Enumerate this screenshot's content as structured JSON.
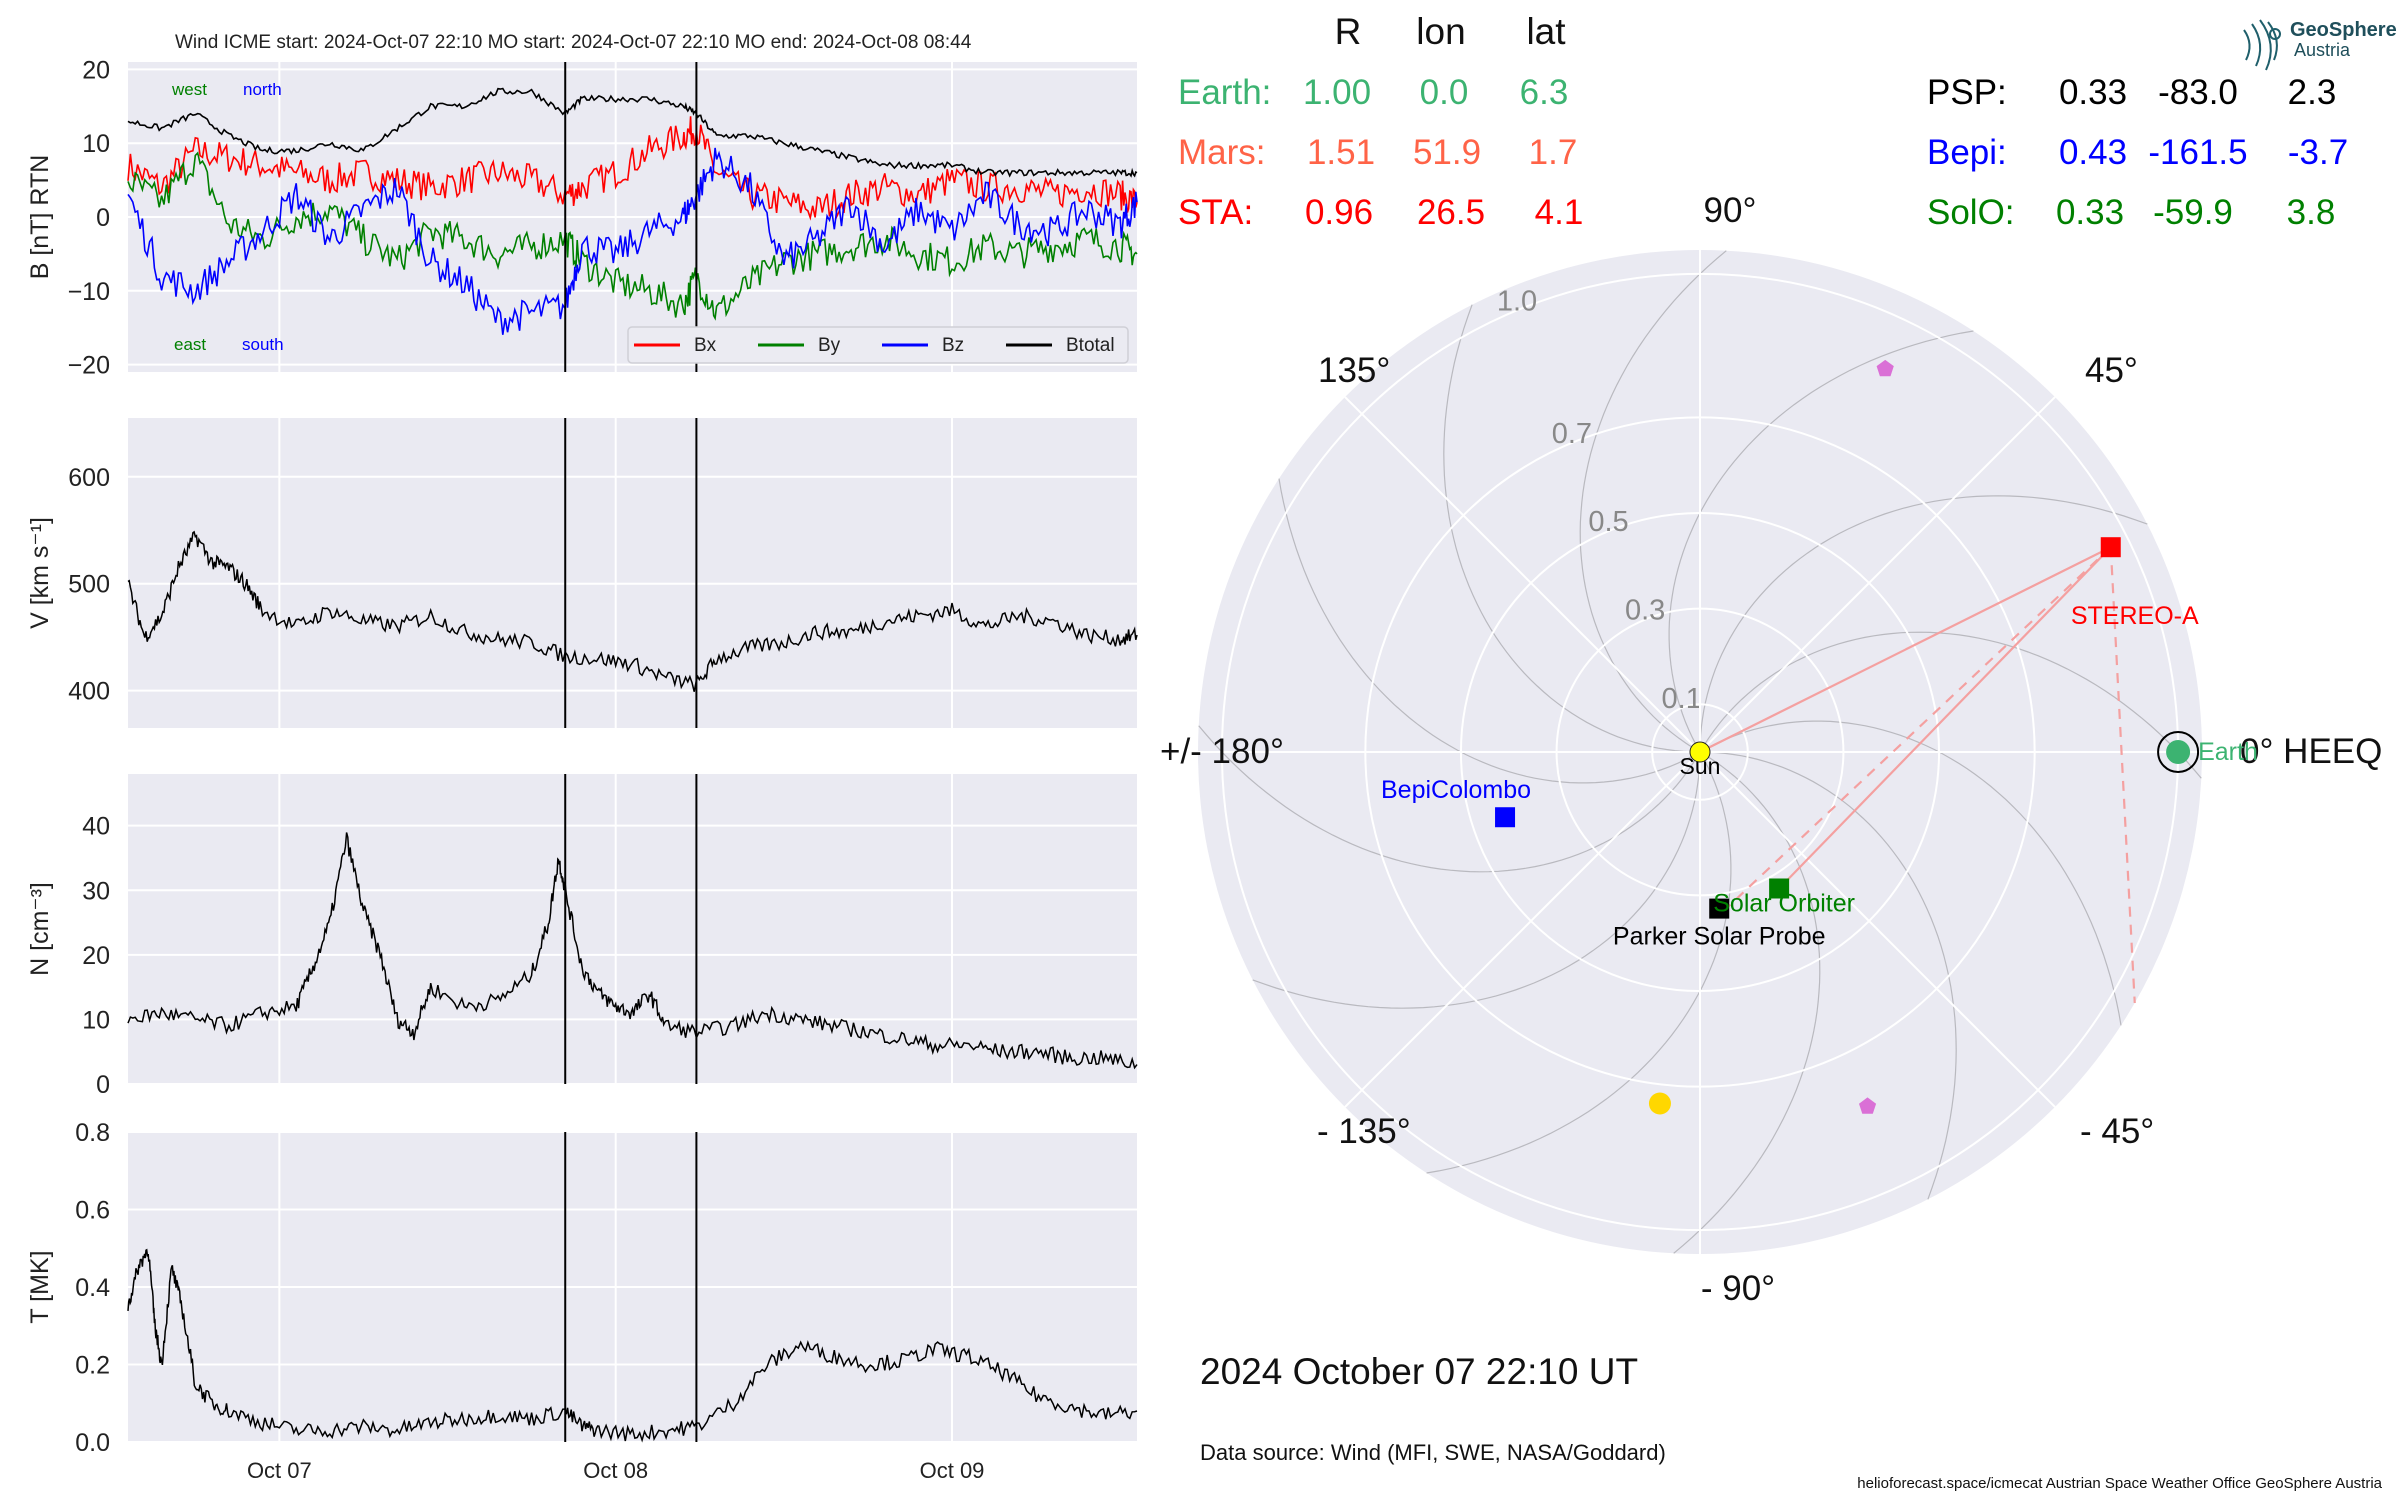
{
  "figure": {
    "header": "Wind    ICME start: 2024-Oct-07 22:10   MO start: 2024-Oct-07 22:10   MO end: 2024-Oct-08 08:44",
    "date_label": "2024 October 07  22:10 UT",
    "source": "Data source: Wind (MFI, SWE, NASA/Goddard)",
    "footer": "helioforecast.space/icmecat   Austrian Space Weather Office   GeoSphere Austria",
    "logo": {
      "line1": "GeoSphere",
      "line2": "Austria"
    }
  },
  "colors": {
    "panel_bg": "#eaeaf2",
    "bx": "#ff0000",
    "by": "#008000",
    "bz": "#0000ff",
    "btotal": "#000000",
    "earth": "#3cb371",
    "mars": "#ff6347",
    "sta": "#ff0000",
    "psp": "#000000",
    "bepi": "#0000ff",
    "solo": "#008000",
    "sun": "#ffff00",
    "comet": "#da70d6",
    "gold": "#ffd700"
  },
  "chart_data": [
    {
      "type": "line",
      "panel": "magnetic-field",
      "ylabel": "B [nT] RTN",
      "ylim": [
        -21,
        21
      ],
      "yticks": [
        "20",
        "10",
        "0",
        "−10",
        "−20"
      ],
      "ytick_values": [
        20,
        10,
        0,
        -10,
        -20
      ],
      "xlim_days": [
        0,
        3
      ],
      "xticks": [
        "Oct 07",
        "Oct 08",
        "Oct 09"
      ],
      "annotations": {
        "west": "west",
        "north": "north",
        "east": "east",
        "south": "south"
      },
      "legend": [
        "Bx",
        "By",
        "Bz",
        "Btotal"
      ],
      "legend_position": "lower-right",
      "event_lines_days": [
        1.3,
        1.69
      ],
      "series": [
        {
          "name": "Bx",
          "color": "#ff0000",
          "x": [
            0.0,
            0.1,
            0.2,
            0.3,
            0.4,
            0.5,
            0.6,
            0.7,
            0.8,
            0.9,
            1.0,
            1.1,
            1.2,
            1.3,
            1.35,
            1.45,
            1.55,
            1.65,
            1.69,
            1.75,
            1.85,
            1.95,
            2.05,
            2.15,
            2.25,
            2.35,
            2.45,
            2.55,
            2.65,
            2.75,
            2.85,
            2.95,
            3.0
          ],
          "y": [
            7,
            4,
            9,
            8,
            7,
            6,
            5,
            6,
            5,
            4,
            5,
            6,
            5,
            3,
            4,
            6,
            9,
            11,
            12,
            6,
            3,
            2,
            1,
            3,
            4,
            3,
            5,
            4,
            4,
            3,
            4,
            3,
            2
          ]
        },
        {
          "name": "By",
          "color": "#008000",
          "x": [
            0.0,
            0.1,
            0.2,
            0.3,
            0.4,
            0.5,
            0.6,
            0.7,
            0.8,
            0.9,
            1.0,
            1.1,
            1.2,
            1.3,
            1.35,
            1.45,
            1.55,
            1.65,
            1.69,
            1.75,
            1.85,
            1.95,
            2.05,
            2.15,
            2.25,
            2.35,
            2.45,
            2.55,
            2.65,
            2.75,
            2.85,
            2.95,
            3.0
          ],
          "y": [
            5,
            2,
            8,
            -1,
            -3,
            0,
            1,
            -3,
            -6,
            -2,
            -3,
            -5,
            -4,
            -3,
            -6,
            -9,
            -10,
            -12,
            -8,
            -13,
            -9,
            -6,
            -5,
            -4,
            -3,
            -5,
            -6,
            -4,
            -5,
            -4,
            -3,
            -4,
            -5
          ]
        },
        {
          "name": "Bz",
          "color": "#0000ff",
          "x": [
            0.0,
            0.1,
            0.2,
            0.3,
            0.4,
            0.5,
            0.6,
            0.7,
            0.8,
            0.9,
            1.0,
            1.1,
            1.2,
            1.3,
            1.35,
            1.45,
            1.55,
            1.65,
            1.69,
            1.75,
            1.85,
            1.95,
            2.05,
            2.15,
            2.25,
            2.35,
            2.45,
            2.55,
            2.65,
            2.75,
            2.85,
            2.95,
            3.0
          ],
          "y": [
            3,
            -8,
            -10,
            -6,
            -2,
            3,
            -3,
            1,
            4,
            -6,
            -9,
            -14,
            -13,
            -12,
            -4,
            -5,
            -2,
            0,
            3,
            8,
            4,
            -6,
            -3,
            2,
            -4,
            1,
            -2,
            3,
            -1,
            -2,
            1,
            -1,
            2
          ]
        },
        {
          "name": "Btotal",
          "color": "#000000",
          "x": [
            0.0,
            0.1,
            0.2,
            0.3,
            0.4,
            0.5,
            0.6,
            0.7,
            0.8,
            0.9,
            1.0,
            1.1,
            1.2,
            1.3,
            1.35,
            1.45,
            1.55,
            1.65,
            1.69,
            1.75,
            1.85,
            1.95,
            2.05,
            2.15,
            2.25,
            2.35,
            2.45,
            2.55,
            2.65,
            2.75,
            2.85,
            2.95,
            3.0
          ],
          "y": [
            13,
            12,
            14,
            11,
            9,
            9,
            10,
            9,
            12,
            15,
            15,
            17,
            17,
            14,
            16,
            16,
            16,
            15,
            14,
            11,
            11,
            10,
            9,
            8,
            7,
            7,
            7,
            6,
            6,
            6,
            6,
            6,
            6
          ]
        }
      ]
    },
    {
      "type": "line",
      "panel": "speed",
      "ylabel": "V [km s⁻¹]",
      "ylim": [
        365,
        655
      ],
      "yticks": [
        "600",
        "500",
        "400"
      ],
      "ytick_values": [
        600,
        500,
        400
      ],
      "xlim_days": [
        0,
        3
      ],
      "xticks": [
        "Oct 07",
        "Oct 08",
        "Oct 09"
      ],
      "event_lines_days": [
        1.3,
        1.69
      ],
      "series": [
        {
          "name": "V",
          "color": "#000000",
          "x": [
            0.0,
            0.05,
            0.1,
            0.15,
            0.2,
            0.25,
            0.3,
            0.35,
            0.4,
            0.5,
            0.6,
            0.7,
            0.8,
            0.9,
            1.0,
            1.1,
            1.2,
            1.3,
            1.4,
            1.5,
            1.6,
            1.69,
            1.75,
            1.85,
            1.95,
            2.05,
            2.15,
            2.25,
            2.35,
            2.45,
            2.55,
            2.65,
            2.75,
            2.85,
            2.95,
            3.0
          ],
          "y": [
            500,
            450,
            470,
            515,
            545,
            520,
            515,
            500,
            475,
            460,
            475,
            465,
            460,
            470,
            455,
            448,
            445,
            432,
            430,
            425,
            412,
            405,
            430,
            440,
            445,
            455,
            455,
            465,
            470,
            475,
            460,
            470,
            465,
            452,
            448,
            452
          ]
        }
      ]
    },
    {
      "type": "line",
      "panel": "density",
      "ylabel": "N [cm⁻³]",
      "ylim": [
        0,
        48
      ],
      "yticks": [
        "40",
        "30",
        "20",
        "10",
        "0"
      ],
      "ytick_values": [
        40,
        30,
        20,
        10,
        0
      ],
      "xlim_days": [
        0,
        3
      ],
      "xticks": [
        "Oct 07",
        "Oct 08",
        "Oct 09"
      ],
      "event_lines_days": [
        1.3,
        1.69
      ],
      "series": [
        {
          "name": "N",
          "color": "#000000",
          "x": [
            0.0,
            0.1,
            0.2,
            0.3,
            0.4,
            0.5,
            0.55,
            0.6,
            0.65,
            0.7,
            0.75,
            0.8,
            0.85,
            0.9,
            1.0,
            1.1,
            1.2,
            1.25,
            1.28,
            1.3,
            1.35,
            1.4,
            1.45,
            1.5,
            1.55,
            1.6,
            1.69,
            1.8,
            1.9,
            2.0,
            2.1,
            2.2,
            2.3,
            2.4,
            2.5,
            2.6,
            2.7,
            2.8,
            2.9,
            3.0
          ],
          "y": [
            10,
            11,
            10,
            9,
            11,
            12,
            18,
            25,
            38,
            27,
            20,
            10,
            8,
            15,
            12,
            13,
            17,
            25,
            35,
            30,
            18,
            14,
            12,
            11,
            14,
            9,
            8,
            9,
            11,
            10,
            9,
            8,
            7,
            6,
            6,
            5,
            5,
            4,
            4,
            3
          ]
        }
      ]
    },
    {
      "type": "line",
      "panel": "temperature",
      "ylabel": "T [MK]",
      "ylim": [
        0,
        0.8
      ],
      "yticks": [
        "0.8",
        "0.6",
        "0.4",
        "0.2",
        "0.0"
      ],
      "ytick_values": [
        0.8,
        0.6,
        0.4,
        0.2,
        0.0
      ],
      "xlim_days": [
        0,
        3
      ],
      "xticks": [
        "Oct 07",
        "Oct 08",
        "Oct 09"
      ],
      "event_lines_days": [
        1.3,
        1.69
      ],
      "series": [
        {
          "name": "T",
          "color": "#000000",
          "x": [
            0.0,
            0.03,
            0.06,
            0.08,
            0.1,
            0.13,
            0.16,
            0.2,
            0.25,
            0.3,
            0.4,
            0.5,
            0.6,
            0.7,
            0.8,
            0.9,
            1.0,
            1.1,
            1.2,
            1.3,
            1.35,
            1.4,
            1.5,
            1.6,
            1.69,
            1.8,
            1.9,
            2.0,
            2.1,
            2.2,
            2.3,
            2.4,
            2.5,
            2.6,
            2.7,
            2.8,
            2.9,
            3.0
          ],
          "y": [
            0.35,
            0.45,
            0.5,
            0.3,
            0.2,
            0.45,
            0.35,
            0.15,
            0.1,
            0.08,
            0.05,
            0.03,
            0.03,
            0.04,
            0.03,
            0.05,
            0.06,
            0.07,
            0.06,
            0.08,
            0.04,
            0.03,
            0.02,
            0.03,
            0.04,
            0.1,
            0.2,
            0.25,
            0.22,
            0.2,
            0.21,
            0.24,
            0.22,
            0.18,
            0.12,
            0.09,
            0.07,
            0.08
          ]
        }
      ]
    },
    {
      "type": "scatter",
      "panel": "polar-position",
      "coordinate_system": "HEEQ",
      "r_max_au": 1.0,
      "radial_ticks": [
        "0.1",
        "0.3",
        "0.5",
        "0.7",
        "1.0"
      ],
      "radial_tick_values": [
        0.1,
        0.3,
        0.5,
        0.7,
        1.0
      ],
      "angle_labels": {
        "a0": "0° HEEQ",
        "a45": "45°",
        "a90": "90°",
        "a135": "135°",
        "a180": "+/- 180°",
        "am135": "- 135°",
        "am90": "- 90°",
        "am45": "- 45°"
      },
      "table_headers": {
        "r": "R",
        "lon": "lon",
        "lat": "lat"
      },
      "bodies": [
        {
          "key": "earth",
          "label": "Earth:",
          "plot_label": "Earth",
          "r_text": "1.00",
          "lon_text": "0.0",
          "lat_text": "6.3",
          "r": 1.0,
          "lon": 0.0,
          "color": "#3cb371",
          "marker": "circle"
        },
        {
          "key": "mars",
          "label": "Mars:",
          "plot_label": "",
          "r_text": "1.51",
          "lon_text": "51.9",
          "lat_text": "1.7",
          "r": 1.51,
          "lon": 51.9,
          "color": "#ff6347",
          "marker": "none"
        },
        {
          "key": "sta",
          "label": "STA:",
          "plot_label": "STEREO-A",
          "r_text": "0.96",
          "lon_text": "26.5",
          "lat_text": "4.1",
          "r": 0.96,
          "lon": 26.5,
          "color": "#ff0000",
          "marker": "square"
        },
        {
          "key": "psp",
          "label": "PSP:",
          "plot_label": "Parker Solar Probe",
          "r_text": "0.33",
          "lon_text": "-83.0",
          "lat_text": "2.3",
          "r": 0.33,
          "lon": -83.0,
          "color": "#000000",
          "marker": "square"
        },
        {
          "key": "bepi",
          "label": "Bepi:",
          "plot_label": "BepiColombo",
          "r_text": "0.43",
          "lon_text": "-161.5",
          "lat_text": "-3.7",
          "r": 0.43,
          "lon": -161.5,
          "color": "#0000ff",
          "marker": "square"
        },
        {
          "key": "solo",
          "label": "SolO:",
          "plot_label": "Solar Orbiter",
          "r_text": "0.33",
          "lon_text": "-59.9",
          "lat_text": "3.8",
          "r": 0.33,
          "lon": -59.9,
          "color": "#008000",
          "marker": "square"
        }
      ],
      "sun_label": "Sun",
      "extra_markers": [
        {
          "kind": "pentagon",
          "r": 0.89,
          "lon": 64.2,
          "color": "#da70d6"
        },
        {
          "kind": "pentagon",
          "r": 0.82,
          "lon": -64.7,
          "color": "#da70d6"
        },
        {
          "kind": "circle",
          "r": 0.74,
          "lon": -96.5,
          "color": "#ffd700"
        }
      ]
    }
  ]
}
